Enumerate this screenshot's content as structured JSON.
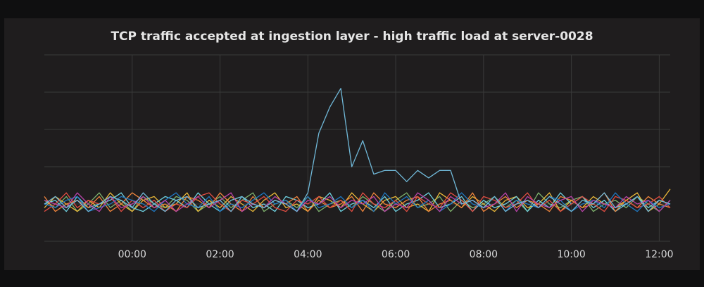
{
  "chart_data": {
    "type": "line",
    "title": "TCP traffic accepted at ingestion layer - high traffic load at server-0028",
    "x": [
      -2,
      -1.75,
      -1.5,
      -1.25,
      -1,
      -0.75,
      -0.5,
      -0.25,
      0,
      0.25,
      0.5,
      0.75,
      1,
      1.25,
      1.5,
      1.75,
      2,
      2.25,
      2.5,
      2.75,
      3,
      3.25,
      3.5,
      3.75,
      4,
      4.25,
      4.5,
      4.75,
      5,
      5.25,
      5.5,
      5.75,
      6,
      6.25,
      6.5,
      6.75,
      7,
      7.25,
      7.5,
      7.75,
      8,
      8.25,
      8.5,
      8.75,
      9,
      9.25,
      9.5,
      9.75,
      10,
      10.25,
      10.5,
      10.75,
      11,
      11.25,
      11.5,
      11.75,
      12,
      12.25
    ],
    "xlim": [
      -2,
      12.25
    ],
    "xticks": [
      {
        "value": 0,
        "label": "00:00"
      },
      {
        "value": 2,
        "label": "02:00"
      },
      {
        "value": 4,
        "label": "04:00"
      },
      {
        "value": 6,
        "label": "06:00"
      },
      {
        "value": 8,
        "label": "08:00"
      },
      {
        "value": 10,
        "label": "10:00"
      },
      {
        "value": 12,
        "label": "12:00"
      }
    ],
    "ylim": [
      0,
      5
    ],
    "yticks": [
      0,
      1,
      2,
      3,
      4,
      5
    ],
    "ytick_labels_shown": false,
    "grid": true,
    "series": [
      {
        "color": "#7eb26d",
        "values": [
          1.1,
          0.9,
          1.2,
          0.8,
          1.0,
          1.3,
          0.9,
          1.1,
          0.8,
          1.2,
          1.0,
          0.9,
          1.2,
          1.1,
          0.8,
          1.0,
          1.2,
          0.9,
          1.1,
          1.3,
          0.8,
          1.0,
          1.1,
          0.9,
          1.2,
          0.8,
          1.0,
          1.1,
          0.9,
          1.2,
          1.0,
          0.8,
          1.1,
          1.3,
          0.9,
          1.0,
          1.2,
          0.8,
          1.1,
          0.9,
          1.0,
          1.2,
          0.9,
          1.1,
          0.8,
          1.3,
          1.0,
          0.9,
          1.1,
          1.2,
          0.8,
          1.0,
          1.1,
          0.9,
          1.2,
          1.0,
          0.8,
          1.1
        ]
      },
      {
        "color": "#eab839",
        "values": [
          0.9,
          1.2,
          1.0,
          0.8,
          1.1,
          0.9,
          1.3,
          1.0,
          0.8,
          1.1,
          1.2,
          0.9,
          1.0,
          1.3,
          0.8,
          1.1,
          0.9,
          1.2,
          1.0,
          0.8,
          1.1,
          1.3,
          0.9,
          1.0,
          0.8,
          1.2,
          1.1,
          0.9,
          1.3,
          1.0,
          0.8,
          1.1,
          1.2,
          0.9,
          1.0,
          0.8,
          1.3,
          1.1,
          0.9,
          1.2,
          1.0,
          0.8,
          1.1,
          1.2,
          0.9,
          1.0,
          1.3,
          0.8,
          1.1,
          0.9,
          1.2,
          1.0,
          0.9,
          1.1,
          1.3,
          0.8,
          1.0,
          1.4
        ]
      },
      {
        "color": "#6ed0e0",
        "values": [
          1.0,
          1.1,
          0.8,
          1.2,
          0.9,
          1.0,
          1.1,
          1.3,
          0.9,
          0.8,
          1.0,
          1.2,
          1.1,
          0.9,
          1.3,
          1.0,
          0.8,
          1.1,
          1.2,
          0.9,
          1.0,
          0.8,
          1.2,
          1.1,
          0.9,
          1.0,
          1.3,
          0.8,
          1.0,
          1.1,
          0.9,
          1.2,
          0.8,
          1.0,
          1.1,
          1.3,
          0.9,
          1.0,
          1.2,
          0.8,
          1.1,
          0.9,
          1.0,
          1.2,
          0.8,
          1.1,
          0.9,
          1.3,
          1.0,
          1.2,
          0.9,
          1.1,
          0.8,
          1.0,
          1.2,
          0.9,
          1.1,
          1.0
        ]
      },
      {
        "color": "#ef843c",
        "values": [
          1.2,
          0.8,
          1.0,
          1.1,
          0.9,
          1.2,
          0.8,
          1.0,
          1.3,
          1.1,
          0.9,
          1.0,
          0.8,
          1.2,
          1.1,
          0.9,
          1.3,
          1.0,
          0.8,
          1.2,
          0.9,
          1.1,
          1.0,
          1.2,
          0.8,
          1.1,
          0.9,
          1.0,
          1.2,
          0.8,
          1.3,
          1.0,
          0.9,
          1.1,
          1.2,
          0.8,
          1.0,
          1.1,
          0.9,
          1.3,
          0.8,
          1.0,
          1.2,
          0.9,
          1.1,
          1.0,
          0.8,
          1.2,
          1.1,
          0.9,
          1.0,
          1.3,
          0.8,
          1.1,
          0.9,
          1.2,
          1.0,
          0.9
        ]
      },
      {
        "color": "#e24d42",
        "values": [
          0.8,
          1.0,
          1.3,
          0.9,
          1.1,
          1.0,
          1.2,
          0.8,
          1.1,
          0.9,
          1.1,
          0.8,
          1.0,
          0.9,
          1.2,
          1.3,
          1.0,
          0.8,
          1.1,
          1.0,
          1.2,
          0.9,
          0.8,
          1.1,
          1.0,
          1.2,
          0.9,
          1.1,
          0.8,
          1.3,
          1.0,
          0.9,
          1.1,
          0.8,
          1.2,
          1.0,
          0.9,
          1.3,
          1.1,
          0.8,
          1.2,
          1.1,
          0.9,
          1.0,
          1.3,
          0.9,
          1.1,
          0.8,
          1.0,
          1.2,
          1.0,
          0.8,
          1.2,
          1.1,
          0.9,
          1.0,
          1.2,
          0.9
        ]
      },
      {
        "color": "#1f78c1",
        "values": [
          1.0,
          0.9,
          1.1,
          1.2,
          0.8,
          0.9,
          1.0,
          1.2,
          1.1,
          1.0,
          0.8,
          1.1,
          1.3,
          1.0,
          0.9,
          1.2,
          0.8,
          1.0,
          0.9,
          1.1,
          1.3,
          1.0,
          1.1,
          0.8,
          1.2,
          0.9,
          1.0,
          1.2,
          0.9,
          1.1,
          0.8,
          1.3,
          1.0,
          1.2,
          0.9,
          1.1,
          0.8,
          1.0,
          1.3,
          1.0,
          0.9,
          1.2,
          0.8,
          1.1,
          1.0,
          0.9,
          1.2,
          1.1,
          0.8,
          1.0,
          1.1,
          0.9,
          1.3,
          1.0,
          0.8,
          1.1,
          0.9,
          1.0
        ]
      },
      {
        "color": "#ba43a9",
        "values": [
          1.1,
          1.0,
          0.9,
          1.3,
          1.0,
          0.8,
          1.2,
          0.9,
          1.0,
          1.2,
          0.9,
          1.1,
          0.8,
          1.0,
          1.2,
          0.9,
          1.1,
          1.3,
          0.8,
          1.0,
          0.9,
          1.2,
          1.0,
          0.8,
          1.1,
          1.0,
          1.2,
          0.9,
          1.1,
          1.0,
          1.2,
          0.8,
          1.0,
          0.9,
          1.3,
          1.1,
          0.8,
          1.2,
          1.0,
          1.1,
          0.9,
          1.0,
          1.3,
          0.8,
          1.2,
          1.0,
          0.9,
          1.1,
          1.2,
          0.8,
          1.1,
          1.0,
          0.9,
          1.2,
          1.0,
          1.1,
          0.8,
          1.1
        ]
      },
      {
        "color": "#70b8d8",
        "values": [
          1.0,
          1.2,
          0.9,
          1.1,
          0.8,
          1.0,
          1.2,
          1.1,
          0.9,
          1.3,
          1.0,
          0.8,
          1.1,
          1.2,
          0.9,
          1.0,
          1.1,
          0.8,
          1.2,
          1.0,
          0.9,
          1.1,
          1.0,
          0.8,
          1.3,
          2.9,
          3.6,
          4.1,
          2.0,
          2.7,
          1.8,
          1.9,
          1.9,
          1.6,
          1.9,
          1.7,
          1.9,
          1.9,
          1.0,
          1.1,
          0.9,
          1.2,
          0.8,
          1.0,
          1.1,
          0.9,
          1.2,
          1.0,
          0.8,
          1.1,
          1.0,
          1.3,
          0.9,
          1.0,
          1.2,
          0.8,
          1.1,
          1.0
        ]
      }
    ]
  }
}
